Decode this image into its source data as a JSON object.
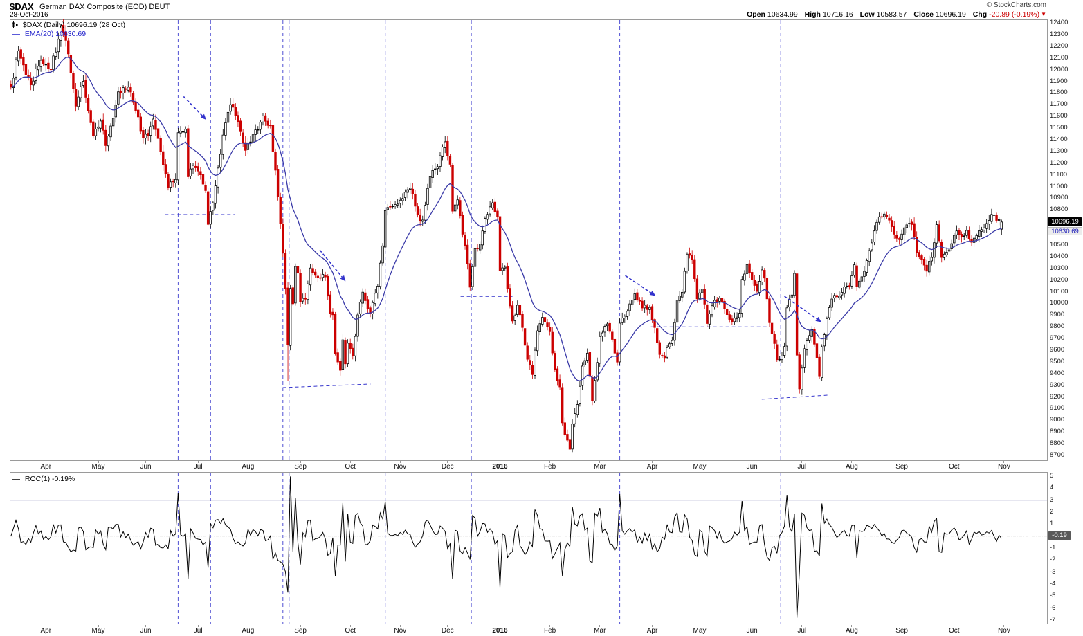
{
  "header": {
    "symbol": "$DAX",
    "title": "German DAX Composite (EOD) DEUT",
    "date": "28-Oct-2016",
    "copyright": "© StockCharts.com",
    "quote": {
      "open_label": "Open",
      "open_value": "10634.99",
      "high_label": "High",
      "high_value": "10716.16",
      "low_label": "Low",
      "low_value": "10583.57",
      "close_label": "Close",
      "close_value": "10696.19",
      "chg_label": "Chg",
      "chg_value": "-20.89 (-0.19%)"
    }
  },
  "main_panel": {
    "legend_symbol": "$DAX (Daily) 10696.19 (28 Oct)",
    "legend_ema": "EMA(20) 10630.69",
    "last_price_label": "10696.19",
    "ema_price_label": "10630.69"
  },
  "roc_panel": {
    "legend": "ROC(1) -0.19%",
    "last_value_label": "-0.19"
  },
  "x_axis": {
    "months": [
      {
        "label": "Apr",
        "day": 14
      },
      {
        "label": "May",
        "day": 35
      },
      {
        "label": "Jun",
        "day": 54
      },
      {
        "label": "Jul",
        "day": 75
      },
      {
        "label": "Aug",
        "day": 95
      },
      {
        "label": "Sep",
        "day": 116
      },
      {
        "label": "Oct",
        "day": 136
      },
      {
        "label": "Nov",
        "day": 156
      },
      {
        "label": "Dec",
        "day": 175
      },
      {
        "label": "2016",
        "day": 196,
        "bold": true
      },
      {
        "label": "Feb",
        "day": 216
      },
      {
        "label": "Mar",
        "day": 236
      },
      {
        "label": "Apr",
        "day": 257
      },
      {
        "label": "May",
        "day": 276
      },
      {
        "label": "Jun",
        "day": 297
      },
      {
        "label": "Jul",
        "day": 317
      },
      {
        "label": "Aug",
        "day": 337
      },
      {
        "label": "Sep",
        "day": 357
      },
      {
        "label": "Oct",
        "day": 378
      },
      {
        "label": "Nov",
        "day": 398
      }
    ]
  },
  "chart_data": {
    "type": "candlestick",
    "title": "$DAX German DAX Composite (EOD) DEUT",
    "frequency": "Daily",
    "date_range": "Mar-2015 to 28-Oct-2016",
    "total_day_slots": 416,
    "num_days": 398,
    "seed": 7,
    "price_axis": {
      "min": 8700,
      "max": 12400,
      "tick": 100
    },
    "roc_axis": {
      "min": -7,
      "max": 5,
      "tick": 1,
      "skip_labels": [
        0
      ]
    },
    "ema_period": 20,
    "roc": {
      "period": 1,
      "threshold_line": 3,
      "last_value": -0.19
    },
    "close_anchors": [
      [
        0,
        11850
      ],
      [
        3,
        12160
      ],
      [
        8,
        11870
      ],
      [
        12,
        12080
      ],
      [
        16,
        12000
      ],
      [
        20,
        12375
      ],
      [
        22,
        12250
      ],
      [
        26,
        11688
      ],
      [
        29,
        11900
      ],
      [
        33,
        11433
      ],
      [
        36,
        11560
      ],
      [
        38,
        11350
      ],
      [
        43,
        11810
      ],
      [
        47,
        11850
      ],
      [
        50,
        11650
      ],
      [
        53,
        11414
      ],
      [
        55,
        11436
      ],
      [
        57,
        11577
      ],
      [
        60,
        11300
      ],
      [
        63,
        10990
      ],
      [
        66,
        11060
      ],
      [
        67,
        11460
      ],
      [
        70,
        11490
      ],
      [
        71,
        11083
      ],
      [
        73,
        11180
      ],
      [
        76,
        11100
      ],
      [
        78,
        10965
      ],
      [
        79,
        10676
      ],
      [
        81,
        10860
      ],
      [
        85,
        11440
      ],
      [
        88,
        11700
      ],
      [
        91,
        11550
      ],
      [
        94,
        11309
      ],
      [
        97,
        11443
      ],
      [
        101,
        11604
      ],
      [
        104,
        11524
      ],
      [
        107,
        10916
      ],
      [
        108,
        10682
      ],
      [
        109,
        10432
      ],
      [
        110,
        10124
      ],
      [
        111,
        9648
      ],
      [
        112,
        10128
      ],
      [
        113,
        9997
      ],
      [
        114,
        10316
      ],
      [
        115,
        10259
      ],
      [
        116,
        10016
      ],
      [
        118,
        10038
      ],
      [
        120,
        10303
      ],
      [
        123,
        10220
      ],
      [
        126,
        10227
      ],
      [
        128,
        9916
      ],
      [
        129,
        9903
      ],
      [
        130,
        9570
      ],
      [
        132,
        9428
      ],
      [
        133,
        9688
      ],
      [
        134,
        9483
      ],
      [
        135,
        9660
      ],
      [
        137,
        9553
      ],
      [
        139,
        9902
      ],
      [
        141,
        10096
      ],
      [
        144,
        9915
      ],
      [
        147,
        10148
      ],
      [
        149,
        10492
      ],
      [
        150,
        10794
      ],
      [
        153,
        10832
      ],
      [
        155,
        10850
      ],
      [
        158,
        10951
      ],
      [
        160,
        10988
      ],
      [
        162,
        10832
      ],
      [
        164,
        10708
      ],
      [
        165,
        10713
      ],
      [
        168,
        11085
      ],
      [
        171,
        11169
      ],
      [
        174,
        11382
      ],
      [
        175,
        11261
      ],
      [
        176,
        11190
      ],
      [
        177,
        10789
      ],
      [
        179,
        10886
      ],
      [
        181,
        10592
      ],
      [
        183,
        10340
      ],
      [
        184,
        10139
      ],
      [
        186,
        10469
      ],
      [
        188,
        10508
      ],
      [
        190,
        10727
      ],
      [
        193,
        10860
      ],
      [
        195,
        10743
      ],
      [
        196,
        10283
      ],
      [
        198,
        10310
      ],
      [
        200,
        9979
      ],
      [
        201,
        9849
      ],
      [
        203,
        9985
      ],
      [
        205,
        9794
      ],
      [
        207,
        9522
      ],
      [
        209,
        9391
      ],
      [
        211,
        9765
      ],
      [
        213,
        9881
      ],
      [
        215,
        9798
      ],
      [
        216,
        9758
      ],
      [
        218,
        9435
      ],
      [
        220,
        9286
      ],
      [
        221,
        8979
      ],
      [
        222,
        8879
      ],
      [
        224,
        8753
      ],
      [
        225,
        8968
      ],
      [
        227,
        9135
      ],
      [
        229,
        9464
      ],
      [
        231,
        9574
      ],
      [
        233,
        9167
      ],
      [
        235,
        9495
      ],
      [
        236,
        9717
      ],
      [
        239,
        9824
      ],
      [
        241,
        9692
      ],
      [
        243,
        9498
      ],
      [
        244,
        9831
      ],
      [
        247,
        9933
      ],
      [
        250,
        10082
      ],
      [
        253,
        9961
      ],
      [
        256,
        9966
      ],
      [
        258,
        9794
      ],
      [
        260,
        9563
      ],
      [
        262,
        9530
      ],
      [
        263,
        9622
      ],
      [
        265,
        9682
      ],
      [
        267,
        10028
      ],
      [
        269,
        10095
      ],
      [
        271,
        10421
      ],
      [
        273,
        10373
      ],
      [
        275,
        10039
      ],
      [
        277,
        10123
      ],
      [
        279,
        9828
      ],
      [
        281,
        9980
      ],
      [
        284,
        10045
      ],
      [
        286,
        9952
      ],
      [
        289,
        9842
      ],
      [
        292,
        9916
      ],
      [
        293,
        10205
      ],
      [
        295,
        10333
      ],
      [
        296,
        10263
      ],
      [
        297,
        10204
      ],
      [
        299,
        10103
      ],
      [
        301,
        10287
      ],
      [
        302,
        10217
      ],
      [
        304,
        9835
      ],
      [
        306,
        9657
      ],
      [
        307,
        9519
      ],
      [
        309,
        9550
      ],
      [
        310,
        9631
      ],
      [
        311,
        9962
      ],
      [
        313,
        10072
      ],
      [
        314,
        10257
      ],
      [
        315,
        9557
      ],
      [
        316,
        9269
      ],
      [
        317,
        9447
      ],
      [
        318,
        9612
      ],
      [
        319,
        9680
      ],
      [
        321,
        9776
      ],
      [
        323,
        9533
      ],
      [
        324,
        9374
      ],
      [
        325,
        9629
      ],
      [
        328,
        9964
      ],
      [
        330,
        10068
      ],
      [
        332,
        10063
      ],
      [
        334,
        10142
      ],
      [
        336,
        10147
      ],
      [
        338,
        10330
      ],
      [
        339,
        10144
      ],
      [
        341,
        10228
      ],
      [
        343,
        10367
      ],
      [
        345,
        10518
      ],
      [
        347,
        10693
      ],
      [
        349,
        10742
      ],
      [
        351,
        10739
      ],
      [
        354,
        10592
      ],
      [
        356,
        10546
      ],
      [
        357,
        10593
      ],
      [
        359,
        10672
      ],
      [
        361,
        10675
      ],
      [
        362,
        10573
      ],
      [
        363,
        10431
      ],
      [
        365,
        10378
      ],
      [
        367,
        10276
      ],
      [
        369,
        10393
      ],
      [
        371,
        10674
      ],
      [
        373,
        10393
      ],
      [
        375,
        10438
      ],
      [
        377,
        10511
      ],
      [
        379,
        10620
      ],
      [
        381,
        10569
      ],
      [
        383,
        10624
      ],
      [
        385,
        10523
      ],
      [
        387,
        10580
      ],
      [
        389,
        10631
      ],
      [
        390,
        10646
      ],
      [
        392,
        10710
      ],
      [
        393,
        10761
      ],
      [
        394,
        10757
      ],
      [
        395,
        10710
      ],
      [
        396,
        10717
      ],
      [
        397,
        10696.19
      ]
    ],
    "last_candle": {
      "day": 397,
      "open": 10634.99,
      "high": 10716.16,
      "low": 10583.57,
      "close": 10696.19
    },
    "wick_overrides": [
      {
        "day": 20,
        "high": 12390
      },
      {
        "day": 111,
        "low": 9338
      },
      {
        "day": 174,
        "high": 11430
      },
      {
        "day": 224,
        "low": 8699
      },
      {
        "day": 315,
        "low": 9300
      }
    ],
    "annotations": {
      "vertical_lines_days": [
        67,
        80,
        109,
        111.5,
        150,
        184.5,
        244,
        308.5
      ],
      "arrows": [
        {
          "from": [
            69.2,
            11770
          ],
          "to": [
            76.7,
            11605
          ]
        },
        {
          "from": [
            123.8,
            10456
          ],
          "to": [
            132.7,
            10226
          ]
        },
        {
          "from": [
            246.2,
            10238
          ],
          "to": [
            256.5,
            10091
          ]
        },
        {
          "from": [
            310,
            10061
          ],
          "to": [
            323,
            9867
          ]
        }
      ],
      "support_lines": [
        {
          "from": [
            61.7,
            10760
          ],
          "to": [
            89.9,
            10760
          ]
        },
        {
          "from": [
            108.9,
            9280
          ],
          "to": [
            144.1,
            9310
          ]
        },
        {
          "from": [
            180.2,
            10060
          ],
          "to": [
            201,
            10060
          ]
        },
        {
          "from": [
            256.5,
            9800
          ],
          "to": [
            303.1,
            9800
          ]
        },
        {
          "from": [
            300.9,
            9180
          ],
          "to": [
            327.3,
            9215
          ]
        }
      ]
    },
    "colors": {
      "up_candle": "#000000",
      "down_candle": "#cc0000",
      "ema_line": "#3a3aa8",
      "annotation_blue": "#3333cc",
      "roc_line": "#000000",
      "zero_line": "#999999",
      "threshold_line": "#3c3c8c",
      "panel_border": "#9a9a9a"
    }
  }
}
